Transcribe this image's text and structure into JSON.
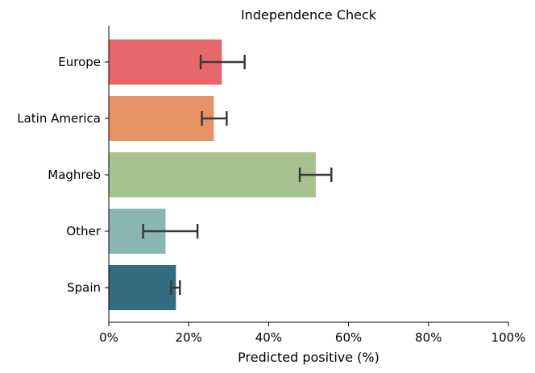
{
  "chart_data": {
    "type": "bar",
    "orientation": "horizontal",
    "title": "Independence Check",
    "xlabel": "Predicted positive (%)",
    "ylabel": "",
    "xlim": [
      0,
      100
    ],
    "x_ticks": [
      0,
      20,
      40,
      60,
      80,
      100
    ],
    "x_tick_labels": [
      "0%",
      "20%",
      "40%",
      "60%",
      "80%",
      "100%"
    ],
    "categories": [
      "Europe",
      "Latin America",
      "Maghreb",
      "Other",
      "Spain"
    ],
    "values": [
      28.3,
      26.3,
      51.8,
      14.2,
      16.8
    ],
    "error_low": [
      23.0,
      23.3,
      47.8,
      8.6,
      15.6
    ],
    "error_high": [
      34.0,
      29.5,
      55.7,
      22.2,
      17.8
    ],
    "colors": [
      "#e8676b",
      "#e69367",
      "#a6c28e",
      "#8ab5b5",
      "#336b7f"
    ],
    "grid": false
  }
}
